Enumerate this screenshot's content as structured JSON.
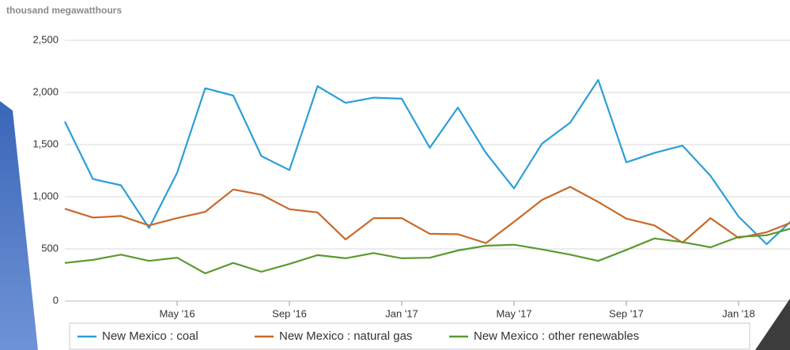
{
  "chart_data": {
    "type": "line",
    "y_axis_label": "thousand megawatthours",
    "x": [
      "2016-01",
      "2016-02",
      "2016-03",
      "2016-04",
      "2016-05",
      "2016-06",
      "2016-07",
      "2016-08",
      "2016-09",
      "2016-10",
      "2016-11",
      "2016-12",
      "2017-01",
      "2017-02",
      "2017-03",
      "2017-04",
      "2017-05",
      "2017-06",
      "2017-07",
      "2017-08",
      "2017-09",
      "2017-10",
      "2017-11",
      "2017-12",
      "2018-01",
      "2018-02",
      "2018-03"
    ],
    "xlim": [
      "2016-01",
      "2018-03"
    ],
    "xticks": [
      {
        "value": "2016-05",
        "label": "May '16"
      },
      {
        "value": "2016-09",
        "label": "Sep '16"
      },
      {
        "value": "2017-01",
        "label": "Jan '17"
      },
      {
        "value": "2017-05",
        "label": "May '17"
      },
      {
        "value": "2017-09",
        "label": "Sep '17"
      },
      {
        "value": "2018-01",
        "label": "Jan '18"
      }
    ],
    "ylim": [
      0,
      2500
    ],
    "yticks": [
      0,
      500,
      {
        "value": 1000,
        "label": "1,000"
      },
      {
        "value": 1500,
        "label": "1,500"
      },
      {
        "value": 2000,
        "label": "2,000"
      },
      {
        "value": 2500,
        "label": "2,500"
      }
    ],
    "grid": true,
    "legend": "bottom",
    "series": [
      {
        "name": "New Mexico : coal",
        "color": "#2a9fd8",
        "values": [
          1720,
          1170,
          1110,
          700,
          1230,
          2040,
          1970,
          1390,
          1255,
          2060,
          1900,
          1950,
          1940,
          1470,
          1855,
          1420,
          1080,
          1510,
          1710,
          2120,
          1330,
          1420,
          1490,
          1200,
          810,
          545,
          800
        ]
      },
      {
        "name": "New Mexico : natural gas",
        "color": "#c8692a",
        "values": [
          885,
          800,
          815,
          725,
          795,
          855,
          1070,
          1020,
          880,
          850,
          590,
          795,
          795,
          645,
          640,
          555,
          760,
          970,
          1095,
          950,
          790,
          725,
          560,
          795,
          605,
          660,
          765
        ]
      },
      {
        "name": "New Mexico : other renewables",
        "color": "#5b9a2f",
        "values": [
          365,
          395,
          445,
          385,
          415,
          265,
          365,
          280,
          355,
          440,
          410,
          460,
          410,
          415,
          485,
          530,
          540,
          495,
          445,
          385,
          490,
          600,
          565,
          515,
          615,
          630,
          705
        ]
      }
    ]
  }
}
